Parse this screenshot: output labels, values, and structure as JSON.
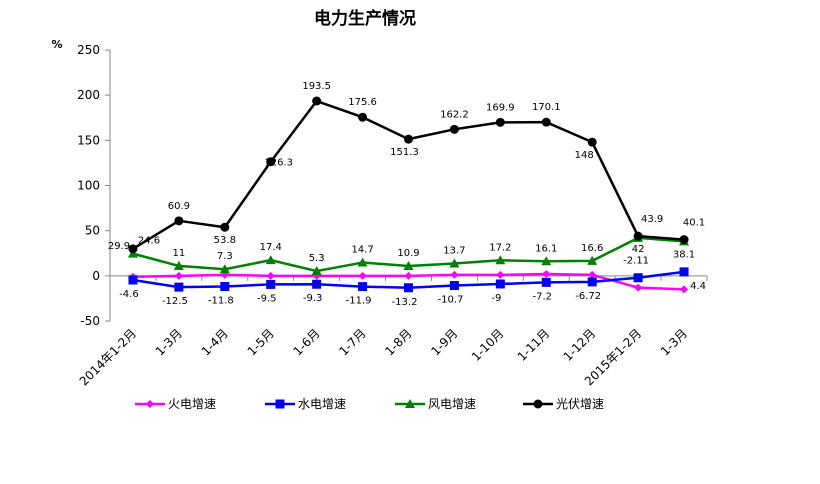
{
  "chart_data": {
    "type": "line",
    "title": "电力生产情况",
    "ylabel": "%",
    "xlabel": "",
    "ylim": [
      -50,
      250
    ],
    "yticks": [
      -50,
      0,
      50,
      100,
      150,
      200,
      250
    ],
    "grid": false,
    "legend_position": "bottom",
    "categories": [
      "2014年1-2月",
      "1-3月",
      "1-4月",
      "1-5月",
      "1-6月",
      "1-7月",
      "1-8月",
      "1-9月",
      "1-10月",
      "1-11月",
      "1-12月",
      "2015年1-2月",
      "1-3月"
    ],
    "series": [
      {
        "name": "火电增速",
        "color": "#ff00ff",
        "marker": "diamond",
        "values": [
          -1,
          0,
          1,
          0,
          0,
          0,
          0,
          1,
          1,
          2,
          1,
          -13,
          -15
        ],
        "labels": []
      },
      {
        "name": "水电增速",
        "color": "#0000ff",
        "marker": "square",
        "values": [
          -4.6,
          -12.5,
          -11.8,
          -9.5,
          -9.3,
          -11.9,
          -13.2,
          -10.7,
          -9,
          -7.2,
          -6.72,
          -2.11,
          4.4
        ],
        "labels": [
          "-4.6",
          "-12.5",
          "-11.8",
          "-9.5",
          "-9.3",
          "-11.9",
          "-13.2",
          "-10.7",
          "-9",
          "-7.2",
          "-6.72",
          "-2.11",
          "4.4"
        ]
      },
      {
        "name": "风电增速",
        "color": "#008000",
        "marker": "triangle",
        "values": [
          24.6,
          11,
          7.3,
          17.4,
          5.3,
          14.7,
          10.9,
          13.7,
          17.2,
          16.1,
          16.6,
          42,
          38.1
        ],
        "labels": [
          "24.6",
          "11",
          "7.3",
          "17.4",
          "5.3",
          "14.7",
          "10.9",
          "13.7",
          "17.2",
          "16.1",
          "16.6",
          "42",
          "38.1"
        ]
      },
      {
        "name": "光伏增速",
        "color": "#000000",
        "marker": "circle",
        "values": [
          29.9,
          60.9,
          53.8,
          126.3,
          193.5,
          175.6,
          151.3,
          162.2,
          169.9,
          170.1,
          148,
          43.9,
          40.1
        ],
        "labels": [
          "29.9",
          "60.9",
          "53.8",
          "126.3",
          "193.5",
          "175.6",
          "151.3",
          "162.2",
          "169.9",
          "170.1",
          "148",
          "43.9",
          "40.1"
        ]
      }
    ]
  }
}
